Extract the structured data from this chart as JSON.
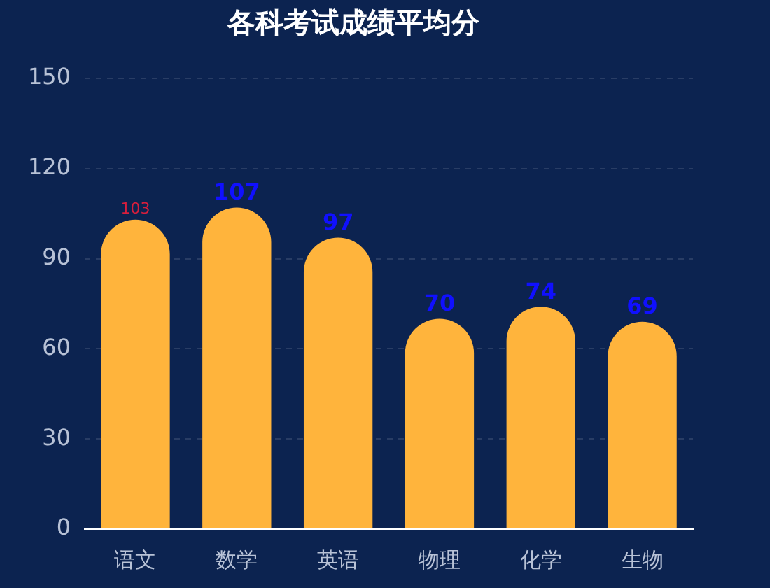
{
  "chart_data": {
    "type": "bar",
    "title": "各科考试成绩平均分",
    "categories": [
      "语文",
      "数学",
      "英语",
      "物理",
      "化学",
      "生物"
    ],
    "values": [
      103,
      107,
      97,
      70,
      74,
      69
    ],
    "color": "#ffb43c",
    "ylim": [
      0,
      150
    ],
    "yticks": [
      0,
      30,
      60,
      90,
      120,
      150
    ],
    "grid": "y",
    "data_labels": true
  }
}
